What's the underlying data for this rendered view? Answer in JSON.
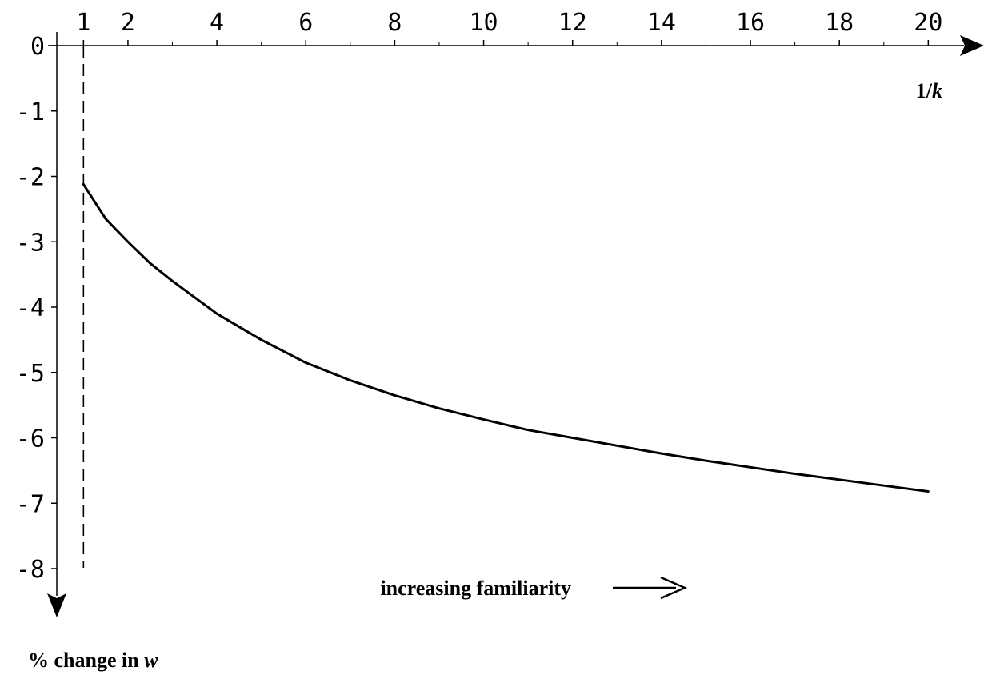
{
  "chart_data": {
    "type": "line",
    "title": "",
    "xlabel_prefix": "1/",
    "xlabel_var": "k",
    "ylabel_prefix": "% change in ",
    "ylabel_var": "w",
    "annotation": "increasing familiarity",
    "x_orientation": "right",
    "y_orientation": "down",
    "xlim": [
      0.4,
      20.2
    ],
    "ylim": [
      0,
      -8
    ],
    "x_ticks": [
      1,
      2,
      4,
      6,
      8,
      10,
      12,
      14,
      16,
      18,
      20
    ],
    "x_minor_ticks": [
      3,
      5,
      7,
      9,
      11,
      13,
      15,
      17,
      19
    ],
    "y_ticks": [
      0,
      -1,
      -2,
      -3,
      -4,
      -5,
      -6,
      -7,
      -8
    ],
    "reference_line": {
      "x": 1,
      "style": "dashed"
    },
    "grid": false,
    "legend": "none",
    "series": [
      {
        "x": [
          1,
          1.5,
          2,
          2.5,
          3,
          4,
          5,
          6,
          7,
          8,
          9,
          10,
          11,
          12,
          13,
          14,
          15,
          16,
          17,
          18,
          19,
          20
        ],
        "y": [
          -2.12,
          -2.65,
          -3.0,
          -3.33,
          -3.6,
          -4.1,
          -4.5,
          -4.85,
          -5.12,
          -5.35,
          -5.55,
          -5.72,
          -5.88,
          -6.0,
          -6.12,
          -6.24,
          -6.35,
          -6.45,
          -6.55,
          -6.64,
          -6.73,
          -6.82
        ]
      }
    ]
  }
}
